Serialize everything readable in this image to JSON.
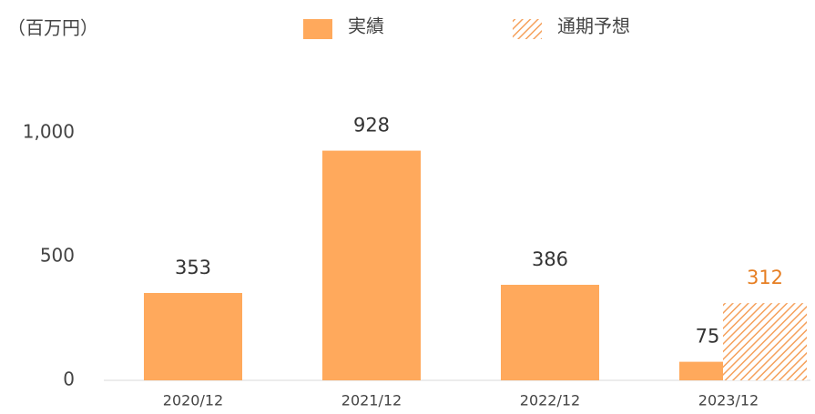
{
  "chart_data": {
    "type": "bar",
    "unit_label": "（百万円）",
    "categories": [
      "2020/12",
      "2021/12",
      "2022/12",
      "2023/12"
    ],
    "series": [
      {
        "name": "実績",
        "color": "#ffa95c",
        "pattern": "solid",
        "label_color": "#333333",
        "values": [
          353,
          928,
          386,
          75
        ]
      },
      {
        "name": "通期予想",
        "color": "#f5a05a",
        "pattern": "hatch",
        "label_color": "#e67e22",
        "values": [
          null,
          null,
          null,
          312
        ]
      }
    ],
    "ylim": [
      0,
      1000
    ],
    "yticks": [
      0,
      500,
      {
        "value": 1000,
        "label": "1,000"
      }
    ],
    "grid": false
  }
}
